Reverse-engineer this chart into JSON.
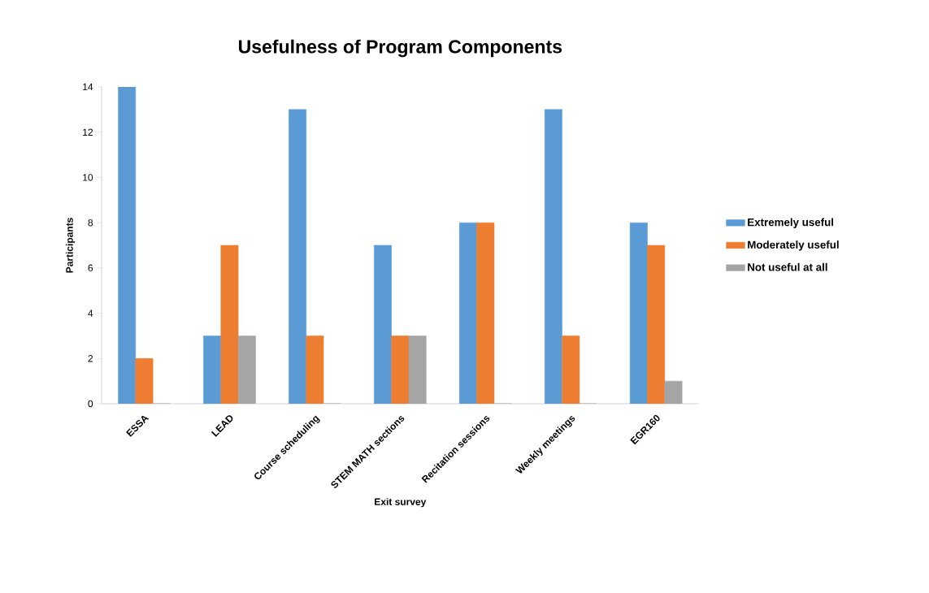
{
  "chart_data": {
    "type": "bar",
    "title": "Usefulness of Program Components",
    "xlabel": "Exit survey",
    "ylabel": "Participants",
    "categories": [
      "ESSA",
      "LEAD",
      "Course scheduling",
      "STEM MATH sections",
      "Recitation sessions",
      "Weekly meetings",
      "EGR160"
    ],
    "series": [
      {
        "name": "Extremely useful",
        "color": "#5b9bd5",
        "values": [
          14,
          3,
          13,
          7,
          8,
          13,
          8
        ]
      },
      {
        "name": "Moderately useful",
        "color": "#ed7d31",
        "values": [
          2,
          7,
          3,
          3,
          8,
          3,
          7
        ]
      },
      {
        "name": "Not useful at all",
        "color": "#a5a5a5",
        "values": [
          0,
          3,
          0,
          3,
          0,
          0,
          1
        ]
      }
    ],
    "ylim": [
      0,
      14
    ],
    "yticks": [
      0,
      2,
      4,
      6,
      8,
      10,
      12,
      14
    ],
    "legend": "right"
  }
}
